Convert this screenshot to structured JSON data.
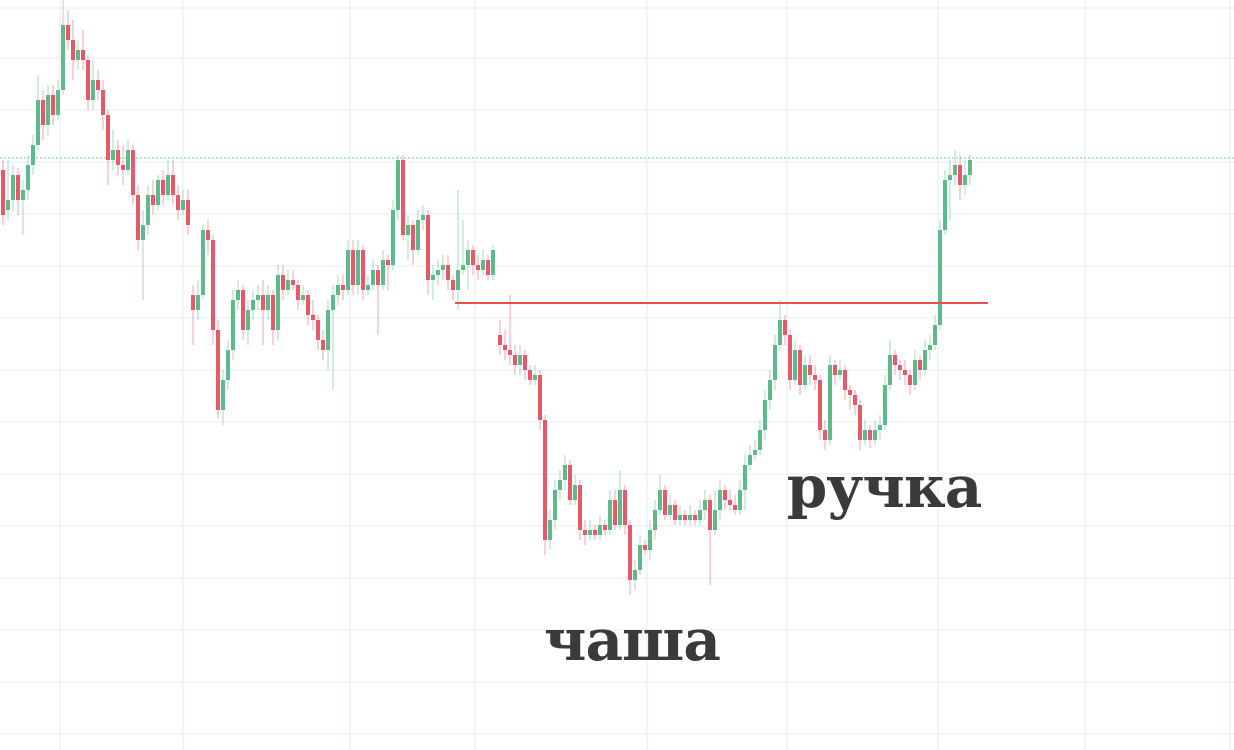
{
  "chart_data": {
    "type": "candlestick",
    "title": "",
    "xlabel": "",
    "ylabel": "",
    "grid": true,
    "ylim": [
      -750,
      0
    ],
    "colors": {
      "up": "#5fb98a",
      "down": "#e45a6a",
      "grid": "#e6edf3",
      "level_line": "#e8514a",
      "dotted_line": "#7fc9a8"
    },
    "levels": [
      {
        "name": "neckline",
        "y": -303
      },
      {
        "name": "resistance",
        "y": -158
      }
    ],
    "annotations": [
      {
        "text": "чаша",
        "x": 632,
        "y": -660
      },
      {
        "text": "ручка",
        "x": 884,
        "y": -507
      }
    ],
    "candles": [
      [
        3,
        -170,
        -215,
        -160,
        -225
      ],
      [
        8,
        -210,
        -200,
        -160,
        -220
      ],
      [
        13,
        -200,
        -175,
        -165,
        -212
      ],
      [
        18,
        -175,
        -200,
        -168,
        -215
      ],
      [
        23,
        -200,
        -190,
        -180,
        -235
      ],
      [
        28,
        -190,
        -165,
        -155,
        -200
      ],
      [
        33,
        -165,
        -145,
        -135,
        -175
      ],
      [
        38,
        -145,
        -100,
        -75,
        -150
      ],
      [
        43,
        -100,
        -125,
        -90,
        -140
      ],
      [
        48,
        -125,
        -95,
        -85,
        -135
      ],
      [
        53,
        -95,
        -115,
        -85,
        -125
      ],
      [
        58,
        -115,
        -90,
        -80,
        -120
      ],
      [
        63,
        -90,
        -25,
        0,
        -95
      ],
      [
        68,
        -25,
        -40,
        -10,
        -50
      ],
      [
        73,
        -40,
        -60,
        -20,
        -80
      ],
      [
        78,
        -60,
        -50,
        -40,
        -70
      ],
      [
        83,
        -50,
        -60,
        -30,
        -70
      ],
      [
        88,
        -60,
        -100,
        -55,
        -110
      ],
      [
        93,
        -100,
        -80,
        -60,
        -110
      ],
      [
        98,
        -80,
        -90,
        -70,
        -100
      ],
      [
        103,
        -90,
        -115,
        -80,
        -130
      ],
      [
        108,
        -115,
        -160,
        -110,
        -185
      ],
      [
        113,
        -160,
        -150,
        -130,
        -170
      ],
      [
        118,
        -150,
        -165,
        -140,
        -175
      ],
      [
        123,
        -165,
        -170,
        -145,
        -185
      ],
      [
        128,
        -170,
        -150,
        -140,
        -175
      ],
      [
        133,
        -150,
        -195,
        -145,
        -205
      ],
      [
        138,
        -195,
        -240,
        -185,
        -250
      ],
      [
        143,
        -240,
        -225,
        -210,
        -300
      ],
      [
        148,
        -225,
        -195,
        -185,
        -235
      ],
      [
        153,
        -195,
        -205,
        -180,
        -215
      ],
      [
        158,
        -205,
        -180,
        -175,
        -210
      ],
      [
        163,
        -180,
        -195,
        -170,
        -205
      ],
      [
        168,
        -195,
        -175,
        -160,
        -200
      ],
      [
        173,
        -175,
        -195,
        -160,
        -205
      ],
      [
        178,
        -195,
        -210,
        -185,
        -220
      ],
      [
        183,
        -210,
        -200,
        -190,
        -215
      ],
      [
        188,
        -200,
        -225,
        -190,
        -235
      ],
      [
        193,
        -295,
        -310,
        -285,
        -345
      ],
      [
        198,
        -310,
        -295,
        -280,
        -320
      ],
      [
        203,
        -295,
        -230,
        -225,
        -300
      ],
      [
        208,
        -230,
        -240,
        -220,
        -255
      ],
      [
        213,
        -240,
        -330,
        -235,
        -345
      ],
      [
        218,
        -330,
        -410,
        -320,
        -418
      ],
      [
        223,
        -410,
        -380,
        -370,
        -425
      ],
      [
        228,
        -380,
        -350,
        -340,
        -390
      ],
      [
        233,
        -350,
        -300,
        -290,
        -360
      ],
      [
        238,
        -300,
        -290,
        -280,
        -310
      ],
      [
        243,
        -290,
        -330,
        -285,
        -340
      ],
      [
        248,
        -330,
        -310,
        -300,
        -345
      ],
      [
        253,
        -310,
        -300,
        -290,
        -320
      ],
      [
        258,
        -300,
        -295,
        -285,
        -310
      ],
      [
        263,
        -295,
        -310,
        -280,
        -345
      ],
      [
        268,
        -310,
        -295,
        -285,
        -320
      ],
      [
        273,
        -295,
        -330,
        -290,
        -345
      ],
      [
        278,
        -330,
        -275,
        -265,
        -340
      ],
      [
        283,
        -275,
        -290,
        -265,
        -300
      ],
      [
        288,
        -290,
        -280,
        -270,
        -295
      ],
      [
        293,
        -280,
        -285,
        -270,
        -290
      ],
      [
        298,
        -285,
        -300,
        -280,
        -310
      ],
      [
        303,
        -300,
        -295,
        -285,
        -305
      ],
      [
        308,
        -295,
        -315,
        -290,
        -325
      ],
      [
        313,
        -315,
        -320,
        -300,
        -330
      ],
      [
        318,
        -320,
        -340,
        -315,
        -350
      ],
      [
        323,
        -340,
        -350,
        -330,
        -360
      ],
      [
        328,
        -350,
        -310,
        -300,
        -370
      ],
      [
        333,
        -310,
        -295,
        -285,
        -390
      ],
      [
        338,
        -295,
        -285,
        -275,
        -305
      ],
      [
        343,
        -285,
        -290,
        -275,
        -300
      ],
      [
        348,
        -290,
        -250,
        -240,
        -295
      ],
      [
        353,
        -250,
        -285,
        -240,
        -295
      ],
      [
        358,
        -285,
        -250,
        -240,
        -295
      ],
      [
        363,
        -250,
        -290,
        -245,
        -300
      ],
      [
        368,
        -290,
        -285,
        -275,
        -295
      ],
      [
        373,
        -285,
        -270,
        -260,
        -290
      ],
      [
        378,
        -270,
        -285,
        -265,
        -335
      ],
      [
        383,
        -285,
        -260,
        -250,
        -290
      ],
      [
        388,
        -260,
        -265,
        -255,
        -290
      ],
      [
        393,
        -265,
        -210,
        -200,
        -270
      ],
      [
        398,
        -210,
        -160,
        -155,
        -220
      ],
      [
        403,
        -160,
        -235,
        -155,
        -240
      ],
      [
        408,
        -235,
        -225,
        -215,
        -260
      ],
      [
        413,
        -225,
        -250,
        -220,
        -265
      ],
      [
        418,
        -250,
        -220,
        -210,
        -255
      ],
      [
        423,
        -220,
        -215,
        -205,
        -230
      ],
      [
        428,
        -215,
        -280,
        -210,
        -295
      ],
      [
        433,
        -280,
        -275,
        -265,
        -300
      ],
      [
        438,
        -275,
        -270,
        -260,
        -285
      ],
      [
        443,
        -270,
        -265,
        -255,
        -280
      ],
      [
        448,
        -265,
        -280,
        -255,
        -290
      ],
      [
        453,
        -280,
        -290,
        -275,
        -300
      ],
      [
        458,
        -290,
        -270,
        -190,
        -310
      ],
      [
        463,
        -270,
        -265,
        -220,
        -275
      ],
      [
        468,
        -265,
        -250,
        -240,
        -290
      ],
      [
        473,
        -250,
        -265,
        -245,
        -275
      ],
      [
        478,
        -265,
        -270,
        -255,
        -280
      ],
      [
        483,
        -270,
        -260,
        -250,
        -275
      ],
      [
        488,
        -260,
        -275,
        -255,
        -280
      ],
      [
        493,
        -275,
        -250,
        -245,
        -280
      ],
      [
        500,
        -335,
        -345,
        -320,
        -355
      ],
      [
        505,
        -345,
        -350,
        -330,
        -360
      ],
      [
        510,
        -350,
        -355,
        -295,
        -365
      ],
      [
        515,
        -355,
        -365,
        -345,
        -375
      ],
      [
        520,
        -365,
        -355,
        -345,
        -375
      ],
      [
        525,
        -355,
        -370,
        -350,
        -380
      ],
      [
        530,
        -370,
        -380,
        -365,
        -385
      ],
      [
        535,
        -380,
        -375,
        -365,
        -385
      ],
      [
        540,
        -375,
        -420,
        -370,
        -430
      ],
      [
        545,
        -420,
        -540,
        -415,
        -555
      ],
      [
        550,
        -540,
        -520,
        -510,
        -550
      ],
      [
        555,
        -520,
        -490,
        -480,
        -530
      ],
      [
        560,
        -490,
        -480,
        -470,
        -500
      ],
      [
        565,
        -480,
        -465,
        -455,
        -490
      ],
      [
        570,
        -465,
        -500,
        -460,
        -505
      ],
      [
        575,
        -500,
        -485,
        -475,
        -505
      ],
      [
        580,
        -485,
        -530,
        -480,
        -540
      ],
      [
        585,
        -530,
        -535,
        -520,
        -545
      ],
      [
        590,
        -535,
        -530,
        -520,
        -540
      ],
      [
        595,
        -530,
        -535,
        -525,
        -540
      ],
      [
        600,
        -535,
        -525,
        -515,
        -540
      ],
      [
        605,
        -525,
        -530,
        -520,
        -535
      ],
      [
        610,
        -530,
        -500,
        -490,
        -535
      ],
      [
        615,
        -500,
        -525,
        -490,
        -530
      ],
      [
        620,
        -525,
        -490,
        -470,
        -530
      ],
      [
        625,
        -490,
        -525,
        -485,
        -535
      ],
      [
        630,
        -525,
        -580,
        -520,
        -595
      ],
      [
        635,
        -580,
        -570,
        -560,
        -590
      ],
      [
        640,
        -570,
        -545,
        -535,
        -575
      ],
      [
        645,
        -545,
        -550,
        -540,
        -555
      ],
      [
        650,
        -550,
        -530,
        -520,
        -560
      ],
      [
        655,
        -530,
        -510,
        -500,
        -540
      ],
      [
        660,
        -510,
        -490,
        -475,
        -515
      ],
      [
        665,
        -490,
        -515,
        -485,
        -520
      ],
      [
        670,
        -515,
        -505,
        -495,
        -520
      ],
      [
        675,
        -505,
        -520,
        -500,
        -525
      ],
      [
        680,
        -520,
        -515,
        -505,
        -525
      ],
      [
        685,
        -515,
        -520,
        -510,
        -525
      ],
      [
        690,
        -520,
        -515,
        -505,
        -525
      ],
      [
        695,
        -515,
        -520,
        -510,
        -525
      ],
      [
        700,
        -520,
        -510,
        -500,
        -525
      ],
      [
        705,
        -510,
        -500,
        -490,
        -520
      ],
      [
        710,
        -500,
        -530,
        -495,
        -585
      ],
      [
        715,
        -530,
        -510,
        -490,
        -535
      ],
      [
        720,
        -510,
        -490,
        -480,
        -520
      ],
      [
        725,
        -490,
        -500,
        -485,
        -510
      ],
      [
        730,
        -500,
        -505,
        -490,
        -510
      ],
      [
        735,
        -505,
        -510,
        -495,
        -515
      ],
      [
        740,
        -510,
        -490,
        -480,
        -515
      ],
      [
        745,
        -490,
        -465,
        -455,
        -510
      ],
      [
        750,
        -465,
        -455,
        -445,
        -470
      ],
      [
        755,
        -455,
        -450,
        -440,
        -460
      ],
      [
        760,
        -450,
        -430,
        -420,
        -455
      ],
      [
        765,
        -430,
        -400,
        -390,
        -440
      ],
      [
        770,
        -400,
        -380,
        -370,
        -410
      ],
      [
        775,
        -380,
        -345,
        -335,
        -390
      ],
      [
        780,
        -345,
        -320,
        -300,
        -350
      ],
      [
        785,
        -320,
        -335,
        -315,
        -345
      ],
      [
        790,
        -335,
        -380,
        -330,
        -390
      ],
      [
        795,
        -380,
        -350,
        -340,
        -385
      ],
      [
        800,
        -350,
        -385,
        -345,
        -395
      ],
      [
        805,
        -385,
        -365,
        -355,
        -390
      ],
      [
        810,
        -365,
        -375,
        -355,
        -385
      ],
      [
        815,
        -375,
        -380,
        -365,
        -390
      ],
      [
        820,
        -380,
        -430,
        -375,
        -440
      ],
      [
        825,
        -430,
        -440,
        -420,
        -450
      ],
      [
        830,
        -440,
        -365,
        -355,
        -445
      ],
      [
        835,
        -365,
        -375,
        -360,
        -385
      ],
      [
        840,
        -375,
        -370,
        -360,
        -380
      ],
      [
        845,
        -370,
        -390,
        -365,
        -400
      ],
      [
        850,
        -390,
        -395,
        -385,
        -410
      ],
      [
        855,
        -395,
        -405,
        -390,
        -415
      ],
      [
        860,
        -405,
        -440,
        -400,
        -450
      ],
      [
        865,
        -440,
        -430,
        -420,
        -445
      ],
      [
        870,
        -430,
        -440,
        -425,
        -448
      ],
      [
        875,
        -440,
        -430,
        -420,
        -445
      ],
      [
        880,
        -430,
        -425,
        -415,
        -440
      ],
      [
        885,
        -425,
        -385,
        -375,
        -430
      ],
      [
        890,
        -385,
        -355,
        -340,
        -390
      ],
      [
        895,
        -355,
        -365,
        -350,
        -375
      ],
      [
        900,
        -365,
        -370,
        -360,
        -380
      ],
      [
        905,
        -370,
        -375,
        -360,
        -385
      ],
      [
        910,
        -375,
        -385,
        -370,
        -395
      ],
      [
        915,
        -385,
        -360,
        -350,
        -390
      ],
      [
        920,
        -360,
        -370,
        -355,
        -380
      ],
      [
        925,
        -370,
        -350,
        -340,
        -375
      ],
      [
        930,
        -350,
        -345,
        -335,
        -360
      ],
      [
        935,
        -345,
        -325,
        -315,
        -350
      ],
      [
        940,
        -325,
        -230,
        -220,
        -330
      ],
      [
        945,
        -230,
        -180,
        -170,
        -235
      ],
      [
        950,
        -180,
        -175,
        -160,
        -220
      ],
      [
        955,
        -175,
        -165,
        -150,
        -185
      ],
      [
        960,
        -165,
        -185,
        -155,
        -200
      ],
      [
        965,
        -185,
        -175,
        -160,
        -195
      ],
      [
        970,
        -175,
        -160,
        -155,
        -185
      ]
    ]
  }
}
